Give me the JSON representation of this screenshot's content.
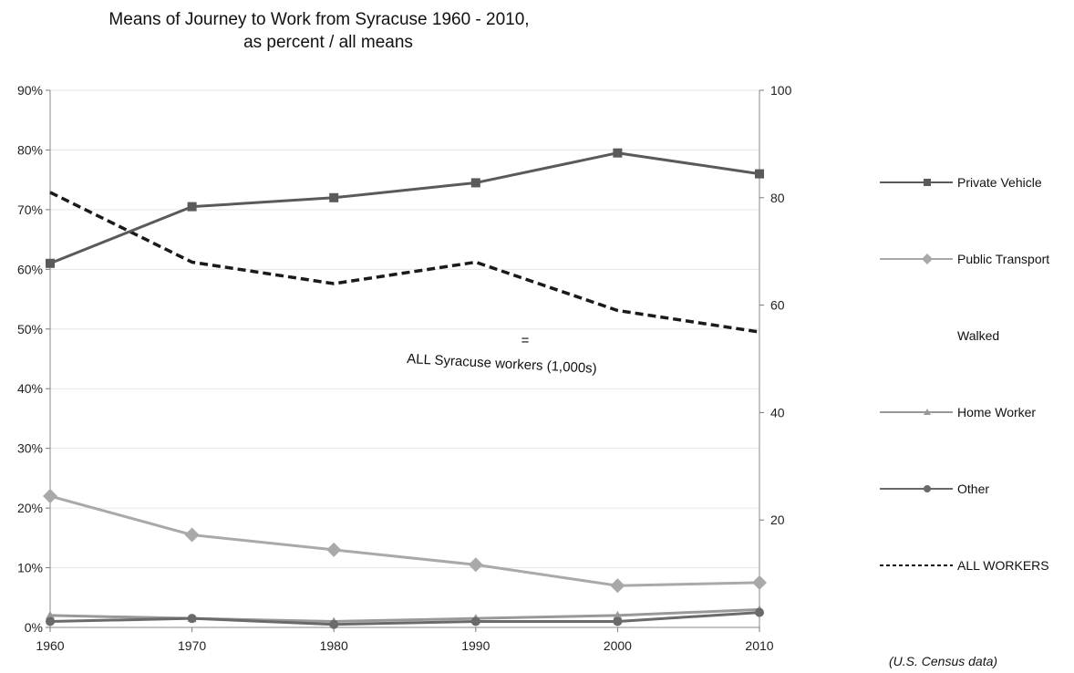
{
  "chart_data": {
    "type": "line",
    "title": [
      "Means of Journey to Work from Syracuse 1960 - 2010,",
      "as percent / all means"
    ],
    "x": [
      1960,
      1970,
      1980,
      1990,
      2000,
      2010
    ],
    "x_ticks": [
      "1960",
      "1970",
      "1980",
      "1990",
      "2000",
      "2010"
    ],
    "ylim_left": [
      0,
      90
    ],
    "left_ticks": [
      "0%",
      "10%",
      "20%",
      "30%",
      "40%",
      "50%",
      "60%",
      "70%",
      "80%",
      "90%"
    ],
    "left_tick_values": [
      0,
      10,
      20,
      30,
      40,
      50,
      60,
      70,
      80,
      90
    ],
    "ylim_right": [
      0,
      100
    ],
    "right_ticks": [
      "20",
      "40",
      "60",
      "80",
      "100"
    ],
    "right_tick_values": [
      20,
      40,
      60,
      80,
      100
    ],
    "grid": "horizontal",
    "legend_position": "right",
    "series": [
      {
        "name": "Private Vehicle",
        "axis": "left",
        "color": "#5a5a5a",
        "marker": "square",
        "dash": "solid",
        "values": [
          61,
          70.5,
          72,
          74.5,
          79.5,
          76
        ]
      },
      {
        "name": "Public Transport",
        "axis": "left",
        "color": "#a9a9a9",
        "marker": "diamond",
        "dash": "solid",
        "values": [
          22,
          15.5,
          13,
          10.5,
          7,
          7.5
        ]
      },
      {
        "name": "Walked",
        "axis": "left",
        "color": "#f2f2f2",
        "marker": "none",
        "dash": "solid",
        "values": [
          null,
          null,
          null,
          null,
          null,
          null
        ]
      },
      {
        "name": "Home Worker",
        "axis": "left",
        "color": "#999999",
        "marker": "triangle",
        "dash": "solid",
        "values": [
          2,
          1.5,
          1,
          1.5,
          2,
          3
        ]
      },
      {
        "name": "Other",
        "axis": "left",
        "color": "#6a6a6a",
        "marker": "circle",
        "dash": "solid",
        "values": [
          1,
          1.5,
          0.5,
          1,
          1,
          2.5
        ]
      },
      {
        "name": "ALL WORKERS",
        "axis": "right",
        "color": "#1a1a1a",
        "marker": "none",
        "dash": "dashed",
        "values": [
          81,
          68,
          64,
          68,
          59,
          55
        ]
      }
    ],
    "annotation": {
      "mark": "=",
      "text": "ALL Syracuse workers (1,000s)"
    },
    "source_note": "(U.S. Census data)"
  }
}
